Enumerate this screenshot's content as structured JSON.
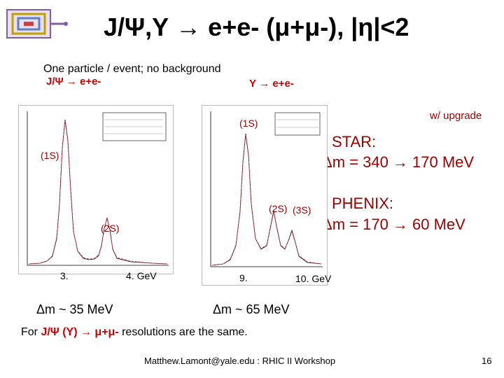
{
  "title": "J/Ψ,Υ → e+e- (μ+μ-), |η|<2",
  "subtitle": "One particle / event;  no background",
  "left_label": "J/Ψ → e+e-",
  "right_label": "Υ → e+e-",
  "upgrade_note": "w/ upgrade",
  "star": {
    "name": "STAR:",
    "resolution": "Δm = 340 → 170 MeV"
  },
  "phenix": {
    "name": "PHENIX:",
    "resolution": "Δm = 170 → 60 MeV"
  },
  "left_plot": {
    "peak1": "(1S)",
    "peak2": "(2S)",
    "x_start": "3.",
    "x_end": "4. GeV",
    "resolution": "Δm ~ 35 MeV"
  },
  "right_plot": {
    "peak1": "(1S)",
    "peak2": "(2S)",
    "peak3": "(3S)",
    "x_start": "9.",
    "x_end": "10. GeV",
    "resolution": "Δm ~ 65 MeV"
  },
  "footer": {
    "prefix": "For ",
    "highlight": "J/Ψ (Υ) → μ+μ-",
    "suffix": " resolutions are the same."
  },
  "credit": "Matthew.Lamont@yale.edu : RHIC II Workshop",
  "page_number": "16"
}
